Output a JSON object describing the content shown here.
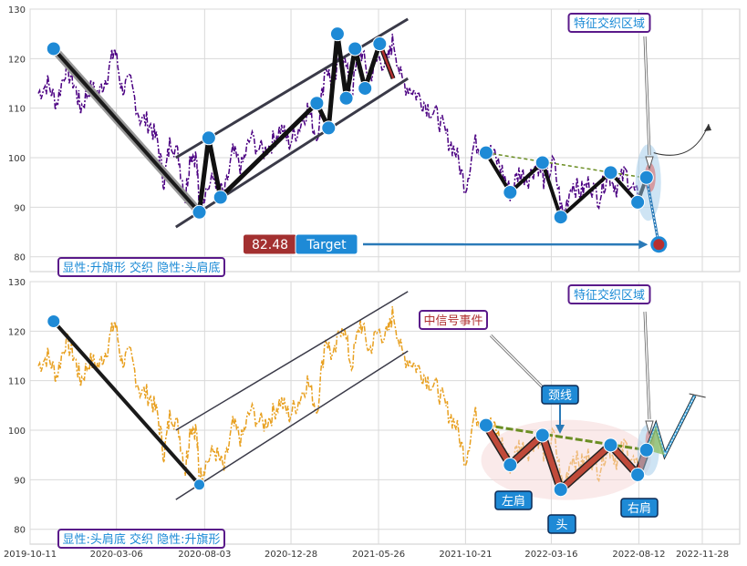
{
  "chart_data": [
    {
      "type": "line",
      "panel": "top",
      "ylim": [
        77,
        130
      ],
      "yticks": [
        80,
        90,
        100,
        110,
        120,
        130
      ],
      "grid": true,
      "price_color": "#4B0082",
      "annotation_box": "显性:升旗形 交织 隐性:头肩底",
      "feature_box": "特征交织区域",
      "price_label": "82.48",
      "target_label": "Target",
      "target_value": 82.48,
      "price_series": [
        [
          "2019-10-25",
          113
        ],
        [
          "2019-11-10",
          115
        ],
        [
          "2019-11-25",
          111
        ],
        [
          "2019-12-10",
          118
        ],
        [
          "2019-12-25",
          115
        ],
        [
          "2020-01-05",
          110
        ],
        [
          "2020-01-20",
          114
        ],
        [
          "2020-02-05",
          113
        ],
        [
          "2020-02-20",
          117
        ],
        [
          "2020-03-03",
          122
        ],
        [
          "2020-03-15",
          114
        ],
        [
          "2020-03-30",
          115
        ],
        [
          "2020-04-15",
          108
        ],
        [
          "2020-05-01",
          107
        ],
        [
          "2020-05-15",
          103
        ],
        [
          "2020-05-26",
          95
        ],
        [
          "2020-06-06",
          104
        ],
        [
          "2020-06-20",
          100
        ],
        [
          "2020-07-01",
          92
        ],
        [
          "2020-07-10",
          101
        ],
        [
          "2020-07-20",
          100
        ],
        [
          "2020-07-25",
          90
        ],
        [
          "2020-08-03",
          93
        ],
        [
          "2020-08-20",
          96
        ],
        [
          "2020-09-05",
          92
        ],
        [
          "2020-09-20",
          101
        ],
        [
          "2020-10-05",
          98
        ],
        [
          "2020-10-20",
          104
        ],
        [
          "2020-11-10",
          101
        ],
        [
          "2020-11-25",
          103
        ],
        [
          "2020-12-10",
          106
        ],
        [
          "2020-12-25",
          103
        ],
        [
          "2021-01-10",
          106
        ],
        [
          "2021-01-25",
          110
        ],
        [
          "2021-02-10",
          104
        ],
        [
          "2021-02-25",
          119
        ],
        [
          "2021-03-10",
          114
        ],
        [
          "2021-03-25",
          122
        ],
        [
          "2021-04-10",
          113
        ],
        [
          "2021-04-25",
          122
        ],
        [
          "2021-05-10",
          116
        ],
        [
          "2021-05-25",
          120
        ],
        [
          "2021-06-10",
          119
        ],
        [
          "2021-06-20",
          124
        ],
        [
          "2021-07-05",
          115
        ],
        [
          "2021-07-20",
          114
        ],
        [
          "2021-08-05",
          112
        ],
        [
          "2021-08-20",
          110
        ],
        [
          "2021-09-05",
          108
        ],
        [
          "2021-09-20",
          104
        ],
        [
          "2021-10-05",
          101
        ],
        [
          "2021-10-21",
          94
        ],
        [
          "2021-11-05",
          103
        ],
        [
          "2021-11-20",
          102
        ],
        [
          "2021-12-05",
          101
        ],
        [
          "2021-12-20",
          98
        ],
        [
          "2022-01-05",
          93
        ],
        [
          "2022-01-20",
          97
        ],
        [
          "2022-02-05",
          96
        ],
        [
          "2022-02-20",
          99
        ],
        [
          "2022-03-05",
          95
        ],
        [
          "2022-03-20",
          99
        ],
        [
          "2022-04-05",
          88
        ],
        [
          "2022-04-20",
          95
        ],
        [
          "2022-05-05",
          93
        ],
        [
          "2022-05-20",
          95
        ],
        [
          "2022-06-05",
          92
        ],
        [
          "2022-06-20",
          97
        ],
        [
          "2022-07-05",
          94
        ],
        [
          "2022-07-20",
          97
        ],
        [
          "2022-08-05",
          93
        ],
        [
          "2022-08-15",
          91
        ]
      ],
      "pattern_lines": [
        {
          "name": "upper-channel",
          "points": [
            [
              "2020-06-15",
              100
            ],
            [
              "2021-07-15",
              128
            ]
          ]
        },
        {
          "name": "lower-channel",
          "points": [
            [
              "2020-06-15",
              86
            ],
            [
              "2021-07-15",
              116
            ]
          ]
        },
        {
          "name": "pole",
          "points": [
            [
              "2019-11-20",
              122
            ],
            [
              "2020-07-25",
              89
            ]
          ]
        },
        {
          "name": "zigzag",
          "points": [
            [
              "2020-07-25",
              89
            ],
            [
              "2020-08-10",
              104
            ],
            [
              "2020-08-30",
              92
            ],
            [
              "2021-02-10",
              111
            ],
            [
              "2021-03-02",
              106
            ],
            [
              "2021-03-17",
              125
            ],
            [
              "2021-04-01",
              112
            ],
            [
              "2021-04-16",
              122
            ],
            [
              "2021-05-03",
              114
            ],
            [
              "2021-05-28",
              123
            ],
            [
              "2021-06-20",
              116
            ]
          ]
        },
        {
          "name": "neckline-dashed",
          "points": [
            [
              "2021-11-25",
              101
            ],
            [
              "2022-08-20",
              96
            ]
          ]
        }
      ],
      "markers": [
        [
          "2019-11-20",
          122
        ],
        [
          "2020-07-25",
          89
        ],
        [
          "2020-08-10",
          104
        ],
        [
          "2020-08-30",
          92
        ],
        [
          "2021-02-10",
          111
        ],
        [
          "2021-03-02",
          106
        ],
        [
          "2021-03-17",
          125
        ],
        [
          "2021-04-01",
          112
        ],
        [
          "2021-04-16",
          122
        ],
        [
          "2021-05-03",
          114
        ],
        [
          "2021-05-28",
          123
        ],
        [
          "2021-11-25",
          101
        ],
        [
          "2022-01-05",
          93
        ],
        [
          "2022-03-01",
          99
        ],
        [
          "2022-04-01",
          88
        ],
        [
          "2022-06-25",
          97
        ],
        [
          "2022-08-10",
          91
        ],
        [
          "2022-08-25",
          96
        ]
      ],
      "hs_zigzag": [
        [
          "2021-11-25",
          101
        ],
        [
          "2022-01-05",
          93
        ],
        [
          "2022-03-01",
          99
        ],
        [
          "2022-04-01",
          88
        ],
        [
          "2022-06-25",
          97
        ],
        [
          "2022-08-10",
          91
        ],
        [
          "2022-08-25",
          96
        ]
      ],
      "target_point": [
        "2022-09-15",
        82.48
      ]
    },
    {
      "type": "line",
      "panel": "bottom",
      "ylim": [
        77,
        130
      ],
      "yticks": [
        80,
        90,
        100,
        110,
        120,
        130
      ],
      "grid": true,
      "price_color": "#E8A020",
      "annotation_box": "显性:头肩底 交织 隐性:升旗形",
      "feature_box": "特征交织区域",
      "signal_box": "中信号事件",
      "labels": {
        "neckline": "颈线",
        "left_shoulder": "左肩",
        "head": "头",
        "right_shoulder": "右肩"
      },
      "xticks": [
        "2019-10-11",
        "2020-03-06",
        "2020-08-03",
        "2020-12-28",
        "2021-05-26",
        "2021-10-21",
        "2022-03-16",
        "2022-08-12",
        "2022-11-28"
      ],
      "pattern_lines": [
        {
          "name": "pole",
          "points": [
            [
              "2019-11-20",
              122
            ],
            [
              "2020-07-25",
              89
            ]
          ]
        },
        {
          "name": "upper-channel",
          "points": [
            [
              "2020-06-15",
              100
            ],
            [
              "2021-07-15",
              128
            ]
          ]
        },
        {
          "name": "lower-channel",
          "points": [
            [
              "2020-06-15",
              86
            ],
            [
              "2021-07-15",
              116
            ]
          ]
        }
      ],
      "hs_points": [
        [
          "2021-11-25",
          101
        ],
        [
          "2022-01-05",
          93
        ],
        [
          "2022-03-01",
          99
        ],
        [
          "2022-04-01",
          88
        ],
        [
          "2022-06-25",
          97
        ],
        [
          "2022-08-10",
          91
        ],
        [
          "2022-08-25",
          96
        ]
      ],
      "projection": [
        [
          "2022-08-25",
          96
        ],
        [
          "2022-09-10",
          101
        ],
        [
          "2022-09-25",
          95
        ],
        [
          "2022-11-15",
          107
        ]
      ]
    }
  ]
}
